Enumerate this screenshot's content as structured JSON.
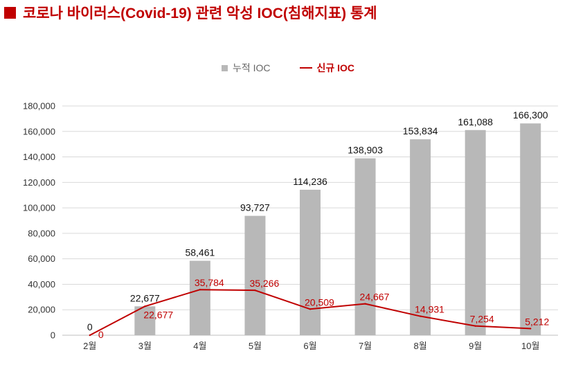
{
  "title": "코로나 바이러스(Covid-19) 관련 악성 IOC(침해지표) 통계",
  "colors": {
    "title": "#c00000",
    "bar": "#b8b8b8",
    "line": "#c00000",
    "grid": "#d9d9d9"
  },
  "chart_data": {
    "type": "bar",
    "title": "코로나 바이러스(Covid-19) 관련 악성 IOC(침해지표) 통계",
    "categories": [
      "2월",
      "3월",
      "4월",
      "5월",
      "6월",
      "7월",
      "8월",
      "9월",
      "10월"
    ],
    "series": [
      {
        "name": "누적 IOC",
        "type": "bar",
        "values": [
          0,
          22677,
          58461,
          93727,
          114236,
          138903,
          153834,
          161088,
          166300
        ]
      },
      {
        "name": "신규 IOC",
        "type": "line",
        "values": [
          0,
          22677,
          35784,
          35266,
          20509,
          24667,
          14931,
          7254,
          5212
        ]
      }
    ],
    "bar_labels": [
      "0",
      "22,677",
      "58,461",
      "93,727",
      "114,236",
      "138,903",
      "153,834",
      "161,088",
      "166,300"
    ],
    "line_labels": [
      "0",
      "22,677",
      "35,784",
      "35,266",
      "20,509",
      "24,667",
      "14,931",
      "7,254",
      "5,212"
    ],
    "y_ticks": [
      0,
      20000,
      40000,
      60000,
      80000,
      100000,
      120000,
      140000,
      160000,
      180000
    ],
    "y_tick_labels": [
      "0",
      "20,000",
      "40,000",
      "60,000",
      "80,000",
      "100,000",
      "120,000",
      "140,000",
      "160,000",
      "180,000"
    ],
    "ylim": [
      0,
      180000
    ],
    "grid": true,
    "legend_position": "top-center",
    "xlabel": "",
    "ylabel": ""
  }
}
